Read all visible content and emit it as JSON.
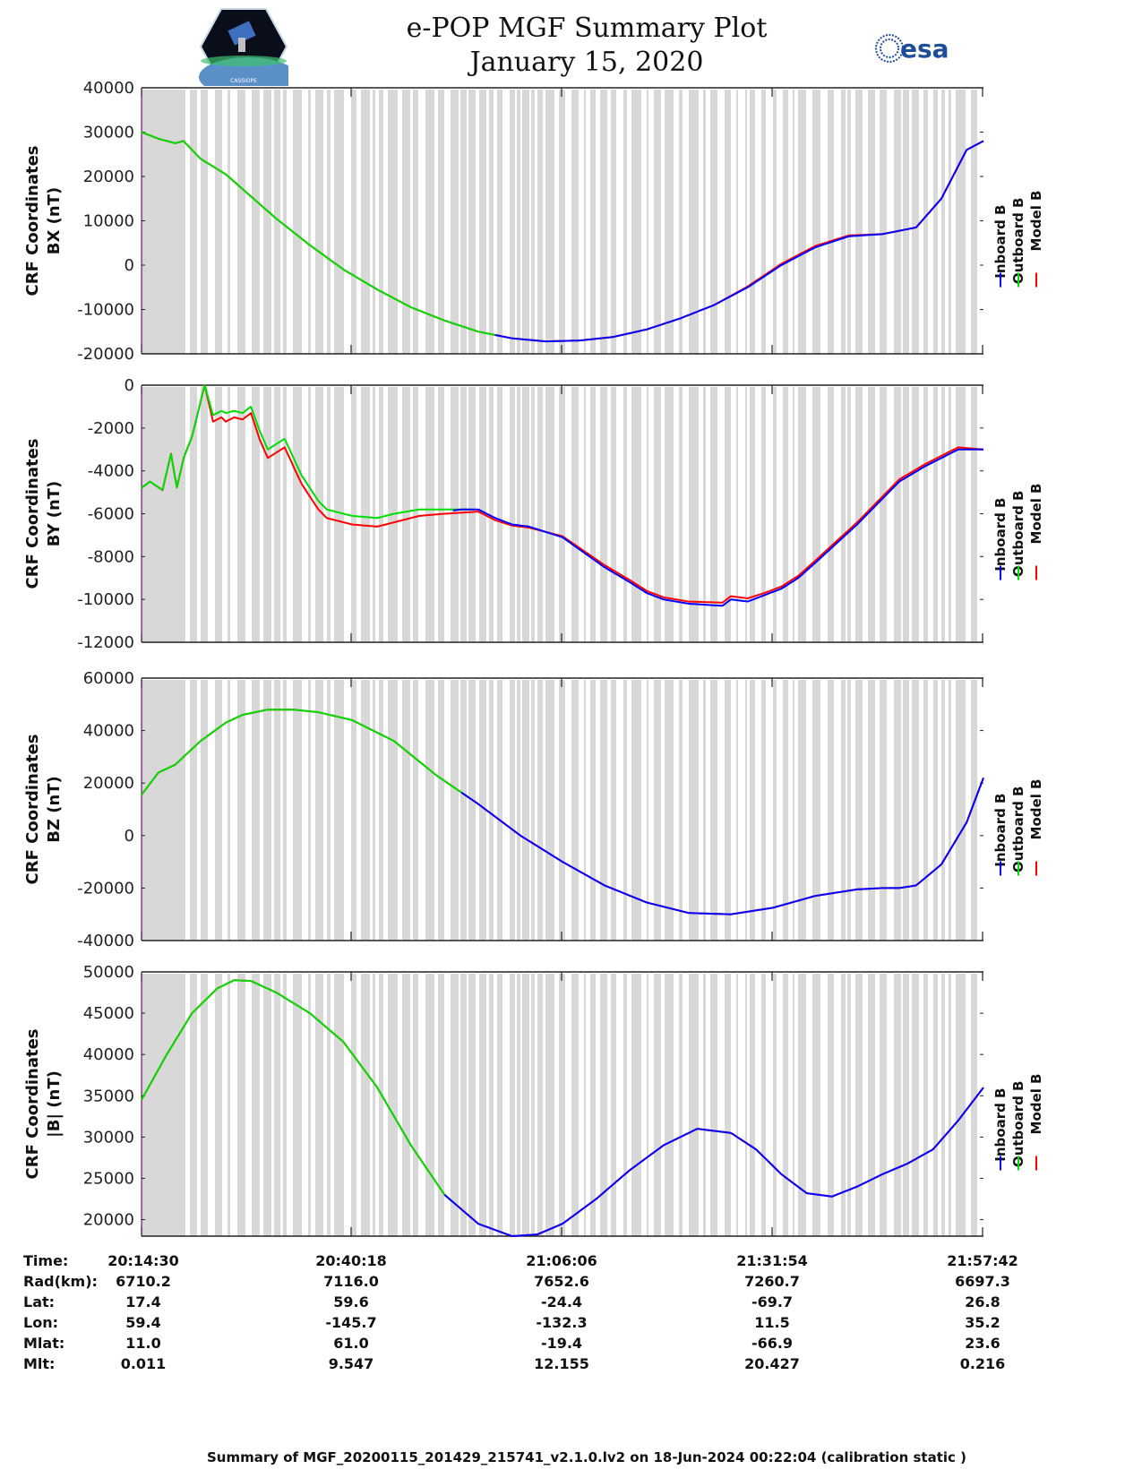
{
  "header": {
    "title_line1": "e-POP MGF Summary Plot",
    "title_line2": "January 15, 2020",
    "logo_left": "cassiope-mission-logo",
    "logo_right": "esa"
  },
  "legend": {
    "entries": [
      {
        "label": "Inboard B",
        "color": "#0000ff"
      },
      {
        "label": "Outboard B",
        "color": "#00dd00"
      },
      {
        "label": "Model B",
        "color": "#ff0000"
      }
    ]
  },
  "colors": {
    "inboard": "#0000ff",
    "outboard": "#00dd00",
    "model": "#ff0000",
    "flag_band": "#d8d8d8",
    "left_edge": "#f0a0f0"
  },
  "info_table": {
    "rows": [
      {
        "label": "Time:",
        "values": [
          "20:14:30",
          "20:40:18",
          "21:06:06",
          "21:31:54",
          "21:57:42"
        ]
      },
      {
        "label": "Rad(km):",
        "values": [
          "6710.2",
          "7116.0",
          "7652.6",
          "7260.7",
          "6697.3"
        ]
      },
      {
        "label": "Lat:",
        "values": [
          "17.4",
          "59.6",
          "-24.4",
          "-69.7",
          "26.8"
        ]
      },
      {
        "label": "Lon:",
        "values": [
          "59.4",
          "-145.7",
          "-132.3",
          "11.5",
          "35.2"
        ]
      },
      {
        "label": "Mlat:",
        "values": [
          "11.0",
          "61.0",
          "-19.4",
          "-66.9",
          "23.6"
        ]
      },
      {
        "label": "Mlt:",
        "values": [
          "0.011",
          "9.547",
          "12.155",
          "20.427",
          "0.216"
        ]
      }
    ]
  },
  "footer": {
    "text": "Summary of MGF_20200115_201429_215741_v2.1.0.lv2 on 18-Jun-2024 00:22:04 (calibration static )"
  },
  "chart_data": [
    {
      "type": "line",
      "title": "",
      "ylabel_line1": "CRF Coordinates",
      "ylabel_line2": "BX (nT)",
      "xlabel": "Time",
      "x_ticks": [
        "20:14:30",
        "20:40:18",
        "21:06:06",
        "21:31:54",
        "21:57:42"
      ],
      "ylim": [
        -20000,
        40000
      ],
      "y_ticks": [
        -20000,
        -10000,
        0,
        10000,
        20000,
        30000,
        40000
      ],
      "x": [
        0,
        0.02,
        0.04,
        0.05,
        0.07,
        0.1,
        0.13,
        0.16,
        0.2,
        0.24,
        0.28,
        0.32,
        0.36,
        0.4,
        0.44,
        0.48,
        0.52,
        0.56,
        0.6,
        0.64,
        0.68,
        0.72,
        0.76,
        0.8,
        0.84,
        0.88,
        0.92,
        0.95,
        0.98,
        1.0
      ],
      "series": [
        {
          "name": "Inboard B",
          "segment": [
            0.42,
            1.0
          ],
          "values": [
            30000,
            28500,
            27500,
            28000,
            24000,
            20500,
            15500,
            10500,
            4500,
            -1000,
            -5500,
            -9500,
            -12500,
            -15000,
            -16500,
            -17200,
            -17000,
            -16200,
            -14500,
            -12000,
            -9000,
            -5000,
            0,
            4000,
            6500,
            7000,
            8500,
            15000,
            26000,
            28000
          ]
        },
        {
          "name": "Outboard B",
          "segment": [
            0.0,
            0.42
          ],
          "values": [
            30000,
            28500,
            27500,
            28000,
            24000,
            20500,
            15500,
            10500,
            4500,
            -1000,
            -5500,
            -9500,
            -12500,
            -15000,
            -16500,
            -17200,
            -17000,
            -16200,
            -14500,
            -12000,
            -9000,
            -5000,
            0,
            4000,
            6500,
            7000,
            8500,
            15000,
            26000,
            28000
          ]
        },
        {
          "name": "Model B",
          "segment": [
            0.0,
            1.0
          ],
          "values": [
            30000,
            28500,
            27500,
            28000,
            24000,
            20500,
            15500,
            10500,
            4500,
            -1000,
            -5500,
            -9500,
            -12500,
            -15000,
            -16500,
            -17200,
            -17000,
            -16200,
            -14500,
            -12000,
            -9000,
            -4800,
            300,
            4300,
            6700,
            7000,
            8500,
            15000,
            26000,
            28000
          ]
        }
      ]
    },
    {
      "type": "line",
      "title": "",
      "ylabel_line1": "CRF Coordinates",
      "ylabel_line2": "BY (nT)",
      "xlabel": "Time",
      "x_ticks": [
        "20:14:30",
        "20:40:18",
        "21:06:06",
        "21:31:54",
        "21:57:42"
      ],
      "ylim": [
        -12000,
        0
      ],
      "y_ticks": [
        -12000,
        -10000,
        -8000,
        -6000,
        -4000,
        -2000,
        0
      ],
      "x": [
        0,
        0.01,
        0.025,
        0.035,
        0.042,
        0.05,
        0.06,
        0.075,
        0.085,
        0.095,
        0.1,
        0.11,
        0.12,
        0.13,
        0.14,
        0.15,
        0.17,
        0.19,
        0.2,
        0.21,
        0.22,
        0.25,
        0.28,
        0.3,
        0.33,
        0.36,
        0.38,
        0.4,
        0.42,
        0.44,
        0.46,
        0.5,
        0.55,
        0.58,
        0.6,
        0.62,
        0.65,
        0.69,
        0.7,
        0.72,
        0.74,
        0.76,
        0.78,
        0.8,
        0.85,
        0.9,
        0.93,
        0.97,
        1.0
      ],
      "series": [
        {
          "name": "Inboard B",
          "segment": [
            0.37,
            1.0
          ],
          "values": [
            -4800,
            -4500,
            -4900,
            -3200,
            -4800,
            -3400,
            -2400,
            0,
            -1600,
            -1300,
            -1500,
            -1300,
            -1400,
            -1100,
            -2300,
            -3200,
            -2700,
            -4400,
            -5000,
            -5600,
            -6000,
            -6300,
            -6400,
            -6200,
            -6000,
            -5900,
            -5800,
            -5800,
            -6200,
            -6500,
            -6600,
            -7100,
            -8500,
            -9200,
            -9700,
            -10000,
            -10200,
            -10300,
            -10000,
            -10100,
            -9800,
            -9500,
            -9000,
            -8300,
            -6500,
            -4500,
            -3800,
            -3000,
            -3000
          ]
        },
        {
          "name": "Outboard B",
          "segment": [
            0.0,
            0.39
          ],
          "values": [
            -4800,
            -4500,
            -4900,
            -3200,
            -4800,
            -3400,
            -2400,
            0,
            -1400,
            -1200,
            -1300,
            -1200,
            -1300,
            -1000,
            -2100,
            -3000,
            -2500,
            -4200,
            -4800,
            -5400,
            -5800,
            -6100,
            -6200,
            -6000,
            -5800,
            -5800,
            -5800,
            -5800,
            -6200,
            -6500,
            -6600,
            -7100,
            -8500,
            -9200,
            -9700,
            -10000,
            -10200,
            -10300,
            -10000,
            -10100,
            -9800,
            -9500,
            -9000,
            -8300,
            -6500,
            -4500,
            -3800,
            -3000,
            -3000
          ]
        },
        {
          "name": "Model B",
          "segment": [
            0.0,
            1.0
          ],
          "values": [
            -4800,
            -4500,
            -4900,
            -3200,
            -4800,
            -3400,
            -2400,
            0,
            -1700,
            -1500,
            -1700,
            -1500,
            -1600,
            -1300,
            -2500,
            -3400,
            -2900,
            -4600,
            -5200,
            -5800,
            -6200,
            -6500,
            -6600,
            -6400,
            -6100,
            -6000,
            -5950,
            -5900,
            -6300,
            -6550,
            -6650,
            -7050,
            -8400,
            -9100,
            -9600,
            -9900,
            -10100,
            -10150,
            -9850,
            -9950,
            -9700,
            -9400,
            -8900,
            -8200,
            -6400,
            -4400,
            -3700,
            -2900,
            -3000
          ]
        }
      ]
    },
    {
      "type": "line",
      "title": "",
      "ylabel_line1": "CRF Coordinates",
      "ylabel_line2": "BZ (nT)",
      "xlabel": "Time",
      "x_ticks": [
        "20:14:30",
        "20:40:18",
        "21:06:06",
        "21:31:54",
        "21:57:42"
      ],
      "ylim": [
        -40000,
        60000
      ],
      "y_ticks": [
        -40000,
        -20000,
        0,
        20000,
        40000,
        60000
      ],
      "x": [
        0,
        0.02,
        0.04,
        0.07,
        0.1,
        0.12,
        0.15,
        0.18,
        0.21,
        0.25,
        0.3,
        0.35,
        0.4,
        0.45,
        0.5,
        0.55,
        0.6,
        0.65,
        0.7,
        0.75,
        0.8,
        0.85,
        0.88,
        0.9,
        0.92,
        0.95,
        0.98,
        1.0
      ],
      "series": [
        {
          "name": "Inboard B",
          "segment": [
            0.38,
            1.0
          ],
          "values": [
            15500,
            24000,
            27000,
            36000,
            43000,
            46000,
            48000,
            48000,
            47000,
            44000,
            36000,
            23000,
            12000,
            0,
            -10000,
            -19000,
            -25500,
            -29500,
            -30000,
            -27500,
            -23000,
            -20500,
            -20000,
            -20000,
            -19000,
            -11000,
            5000,
            22000
          ]
        },
        {
          "name": "Outboard B",
          "segment": [
            0.0,
            0.39
          ],
          "values": [
            15500,
            24000,
            27000,
            36000,
            43000,
            46000,
            48000,
            48000,
            47000,
            44000,
            36000,
            23000,
            12000,
            0,
            -10000,
            -19000,
            -25500,
            -29500,
            -30000,
            -27500,
            -23000,
            -20500,
            -20000,
            -20000,
            -19000,
            -11000,
            5000,
            22000
          ]
        },
        {
          "name": "Model B",
          "segment": [
            0.0,
            1.0
          ],
          "values": [
            15500,
            24000,
            27000,
            36000,
            43000,
            46000,
            48000,
            48000,
            47000,
            44000,
            36000,
            23000,
            12000,
            0,
            -10000,
            -19000,
            -25500,
            -29500,
            -30000,
            -27500,
            -23000,
            -20500,
            -20000,
            -20000,
            -19000,
            -11000,
            5000,
            22000
          ]
        }
      ]
    },
    {
      "type": "line",
      "title": "",
      "ylabel_line1": "CRF Coordinates",
      "ylabel_line2": "|B| (nT)",
      "xlabel": "Time",
      "x_ticks": [
        "20:14:30",
        "20:40:18",
        "21:06:06",
        "21:31:54",
        "21:57:42"
      ],
      "ylim": [
        18000,
        50000
      ],
      "y_ticks": [
        20000,
        25000,
        30000,
        35000,
        40000,
        45000,
        50000
      ],
      "x": [
        0,
        0.03,
        0.06,
        0.09,
        0.11,
        0.13,
        0.16,
        0.2,
        0.24,
        0.28,
        0.32,
        0.36,
        0.4,
        0.44,
        0.47,
        0.5,
        0.54,
        0.58,
        0.62,
        0.66,
        0.7,
        0.73,
        0.76,
        0.79,
        0.82,
        0.85,
        0.88,
        0.91,
        0.94,
        0.97,
        1.0
      ],
      "series": [
        {
          "name": "Inboard B",
          "segment": [
            0.36,
            1.0
          ],
          "values": [
            34500,
            40000,
            45000,
            48000,
            49000,
            48900,
            47500,
            45000,
            41500,
            36000,
            29000,
            23000,
            19500,
            18000,
            18200,
            19500,
            22500,
            26000,
            29000,
            31000,
            30500,
            28500,
            25500,
            23200,
            22800,
            24000,
            25500,
            26800,
            28500,
            32000,
            36000
          ]
        },
        {
          "name": "Outboard B",
          "segment": [
            0.0,
            0.37
          ],
          "values": [
            34500,
            40000,
            45000,
            48000,
            49000,
            48900,
            47500,
            45000,
            41500,
            36000,
            29000,
            23000,
            19500,
            18000,
            18200,
            19500,
            22500,
            26000,
            29000,
            31000,
            30500,
            28500,
            25500,
            23200,
            22800,
            24000,
            25500,
            26800,
            28500,
            32000,
            36000
          ]
        },
        {
          "name": "Model B",
          "segment": [
            0.0,
            1.0
          ],
          "values": [
            34500,
            40000,
            45000,
            48000,
            49000,
            48900,
            47500,
            45000,
            41500,
            36000,
            29000,
            23000,
            19500,
            18000,
            18200,
            19500,
            22500,
            26000,
            29000,
            31000,
            30500,
            28500,
            25500,
            23200,
            22800,
            24000,
            25500,
            26800,
            28500,
            32000,
            36000
          ]
        }
      ]
    }
  ]
}
